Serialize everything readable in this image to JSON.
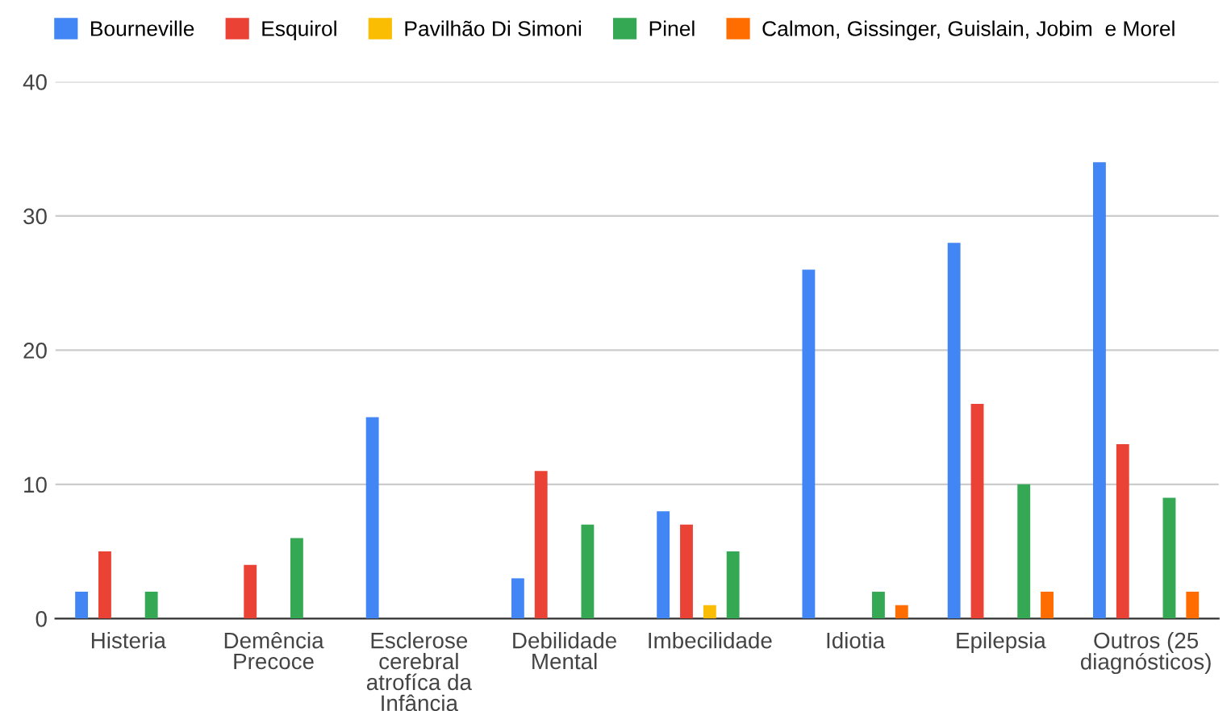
{
  "chart_data": {
    "type": "bar",
    "categories": [
      "Histeria",
      "Demência\nPrecoce",
      "Esclerose\ncerebral\natrofíca da\nInfância",
      "Debilidade\nMental",
      "Imbecilidade",
      "Idiotia",
      "Epilepsia",
      "Outros (25\ndiagnósticos)"
    ],
    "series": [
      {
        "name": "Bourneville",
        "color": "#4285f4",
        "values": [
          2,
          0,
          15,
          3,
          8,
          26,
          28,
          34
        ]
      },
      {
        "name": "Esquirol",
        "color": "#ea4335",
        "values": [
          5,
          4,
          0,
          11,
          7,
          0,
          16,
          13
        ]
      },
      {
        "name": "Pavilhão Di Simoni",
        "color": "#fbbc04",
        "values": [
          0,
          0,
          0,
          0,
          1,
          0,
          0,
          0
        ]
      },
      {
        "name": "Pinel",
        "color": "#34a853",
        "values": [
          2,
          6,
          0,
          7,
          5,
          2,
          10,
          9
        ]
      },
      {
        "name": "Calmon, Gissinger, Guislain, Jobim  e Morel",
        "color": "#ff6d01",
        "values": [
          0,
          0,
          0,
          0,
          0,
          1,
          2,
          2
        ]
      }
    ],
    "ylim": [
      0,
      40
    ],
    "yticks": [
      0,
      10,
      20,
      30,
      40
    ],
    "grid": "y",
    "legend": "top"
  }
}
